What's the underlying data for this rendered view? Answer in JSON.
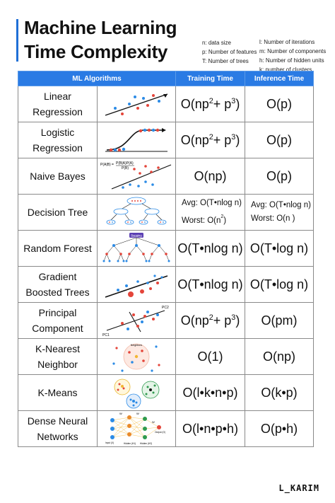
{
  "title_line1": "Machine Learning",
  "title_line2": "Time Complexity",
  "legend_left": [
    "n: data size",
    "p: Number of features",
    "T: Number of trees"
  ],
  "legend_right": [
    "l: Number of iterations",
    "m: Number of components",
    "h: Number of hidden units",
    "k: number of clusters"
  ],
  "headers": {
    "algorithms": "ML Algorithms",
    "training": "Training Time",
    "inference": "Inference Time"
  },
  "rows": [
    {
      "name1": "Linear",
      "name2": "Regression"
    },
    {
      "name1": "Logistic",
      "name2": "Regression"
    },
    {
      "name1": "Naive Bayes",
      "name2": ""
    },
    {
      "name1": "Decision Tree",
      "name2": ""
    },
    {
      "name1": "Random Forest",
      "name2": ""
    },
    {
      "name1": "Gradient",
      "name2": "Boosted Trees"
    },
    {
      "name1": "Principal",
      "name2": "Component"
    },
    {
      "name1": "K-Nearest",
      "name2": "Neighbor"
    },
    {
      "name1": "K-Means",
      "name2": ""
    },
    {
      "name1": "Dense Neural",
      "name2": "Networks"
    }
  ],
  "complexity": {
    "lr_train_a": "O(np",
    "lr_train_b": "2",
    "lr_train_c": "+ p",
    "lr_train_d": "3",
    "lr_train_e": ")",
    "lr_infer": "O(p)",
    "log_train_a": "O(np",
    "log_train_b": "2",
    "log_train_c": "+ p",
    "log_train_d": "3",
    "log_train_e": ")",
    "log_infer": "O(p)",
    "nb_train": "O(np)",
    "nb_infer": "O(p)",
    "dt_train_avg": "Avg: O(T•nlog n)",
    "dt_train_worst_a": "Worst: O(n",
    "dt_train_worst_b": "2",
    "dt_train_worst_c": ")",
    "dt_infer_avg": "Avg: O(T•nlog n)",
    "dt_infer_worst": "Worst: O(n )",
    "rf_train": "O(T•nlog n)",
    "rf_infer": "O(T•log n)",
    "gb_train": "O(T•nlog n)",
    "gb_infer": "O(T•log n)",
    "pca_train_a": "O(np",
    "pca_train_b": "2",
    "pca_train_c": "+ p",
    "pca_train_d": "3",
    "pca_train_e": ")",
    "pca_infer": "O(pm)",
    "knn_train": "O(1)",
    "knn_infer": "O(np)",
    "km_train": "O(l•k•n•p)",
    "km_infer": "O(k•p)",
    "dnn_train": "O(l•n•p•h)",
    "dnn_infer": "O(p•h)"
  },
  "illustration_labels": {
    "bayes_top": "P(A|B) =",
    "bayes_num": "P(B|A)P(A)",
    "bayes_den": "P(B)",
    "pc1": "PC1",
    "pc2": "PC2",
    "neighbors": "Neighbors",
    "bagging": "Bagging",
    "w_top": "W",
    "w_right": "W",
    "w_output": "W",
    "nn_input": "Input (X)",
    "nn_h1": "Hidden (H1)",
    "nn_h2": "Hidden (H2)",
    "nn_output": "Output (O)"
  },
  "colors": {
    "accent": "#1f6fd6",
    "header_bg": "#2a7be4",
    "red": "#e4453a",
    "blue": "#2b8be6",
    "green": "#2e9b4e"
  },
  "brand": "L_KARIM"
}
